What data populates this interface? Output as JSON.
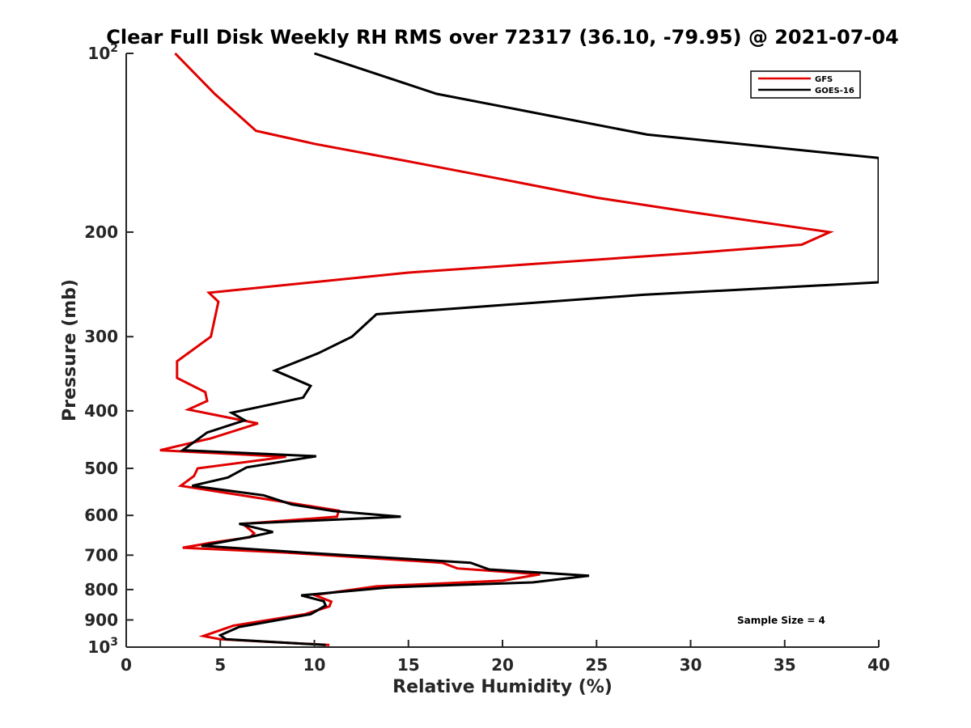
{
  "chart_data": {
    "type": "line",
    "title": "Clear Full Disk Weekly RH RMS over 72317 (36.10, -79.95) @ 2021-07-04",
    "xlabel": "Relative Humidity (%)",
    "ylabel": "Pressure (mb)",
    "xlim": [
      0,
      40
    ],
    "ylim": [
      100,
      1000
    ],
    "y_scale": "log",
    "y_reversed": true,
    "x_ticks": [
      "0",
      "5",
      "10",
      "15",
      "20",
      "25",
      "30",
      "35",
      "40"
    ],
    "y_ticks": [
      {
        "value": 100,
        "label": "10",
        "sup": "2"
      },
      {
        "value": 200,
        "label": "200",
        "sup": ""
      },
      {
        "value": 300,
        "label": "300",
        "sup": ""
      },
      {
        "value": 400,
        "label": "400",
        "sup": ""
      },
      {
        "value": 500,
        "label": "500",
        "sup": ""
      },
      {
        "value": 600,
        "label": "600",
        "sup": ""
      },
      {
        "value": 700,
        "label": "700",
        "sup": ""
      },
      {
        "value": 800,
        "label": "800",
        "sup": ""
      },
      {
        "value": 900,
        "label": "900",
        "sup": ""
      },
      {
        "value": 1000,
        "label": "10",
        "sup": "3"
      }
    ],
    "grid": false,
    "legend_position": "top-right",
    "annotation": "Sample Size = 4",
    "series": [
      {
        "name": "GFS",
        "color": "#e00000",
        "points": [
          [
            2.6,
            100
          ],
          [
            4.7,
            117
          ],
          [
            6.9,
            135
          ],
          [
            10.0,
            142
          ],
          [
            15.0,
            152
          ],
          [
            20.0,
            163
          ],
          [
            25.0,
            175
          ],
          [
            30.0,
            185
          ],
          [
            37.4,
            200
          ],
          [
            35.9,
            210
          ],
          [
            30.0,
            217
          ],
          [
            15.0,
            234
          ],
          [
            4.4,
            253
          ],
          [
            4.9,
            262
          ],
          [
            4.5,
            300
          ],
          [
            2.7,
            330
          ],
          [
            2.7,
            352
          ],
          [
            4.2,
            372
          ],
          [
            4.3,
            385
          ],
          [
            3.3,
            398
          ],
          [
            7.0,
            420
          ],
          [
            4.5,
            445
          ],
          [
            1.8,
            466
          ],
          [
            8.5,
            478
          ],
          [
            3.8,
            500
          ],
          [
            3.6,
            515
          ],
          [
            2.9,
            535
          ],
          [
            8.0,
            567
          ],
          [
            11.3,
            589
          ],
          [
            11.2,
            603
          ],
          [
            6.2,
            620
          ],
          [
            6.8,
            643
          ],
          [
            6.6,
            653
          ],
          [
            4.4,
            668
          ],
          [
            3.0,
            680
          ],
          [
            8.5,
            693
          ],
          [
            16.8,
            721
          ],
          [
            17.6,
            737
          ],
          [
            22.0,
            754
          ],
          [
            20.0,
            773
          ],
          [
            13.3,
            790
          ],
          [
            10.0,
            817
          ],
          [
            10.9,
            838
          ],
          [
            10.8,
            854
          ],
          [
            9.5,
            880
          ],
          [
            5.7,
            920
          ],
          [
            4.1,
            958
          ],
          [
            5.0,
            970
          ],
          [
            10.8,
            992
          ]
        ]
      },
      {
        "name": "GOES-16",
        "color": "#000000",
        "points": [
          [
            10.0,
            100
          ],
          [
            16.5,
            117
          ],
          [
            27.7,
            137
          ],
          [
            40.0,
            150
          ],
          [
            40.0,
            243
          ],
          [
            27.5,
            255
          ],
          [
            13.3,
            275
          ],
          [
            12.0,
            300
          ],
          [
            10.2,
            320
          ],
          [
            7.9,
            342
          ],
          [
            9.8,
            363
          ],
          [
            9.4,
            380
          ],
          [
            5.6,
            403
          ],
          [
            6.3,
            415
          ],
          [
            4.3,
            435
          ],
          [
            3.0,
            466
          ],
          [
            10.1,
            477
          ],
          [
            6.4,
            498
          ],
          [
            5.4,
            518
          ],
          [
            3.5,
            535
          ],
          [
            7.3,
            555
          ],
          [
            8.8,
            575
          ],
          [
            11.0,
            590
          ],
          [
            14.6,
            603
          ],
          [
            6.0,
            620
          ],
          [
            7.8,
            640
          ],
          [
            6.5,
            653
          ],
          [
            4.0,
            675
          ],
          [
            10.0,
            695
          ],
          [
            18.3,
            721
          ],
          [
            19.3,
            740
          ],
          [
            24.6,
            758
          ],
          [
            21.6,
            778
          ],
          [
            14.0,
            793
          ],
          [
            9.3,
            818
          ],
          [
            10.5,
            837
          ],
          [
            10.6,
            851
          ],
          [
            9.8,
            880
          ],
          [
            6.0,
            925
          ],
          [
            5.0,
            955
          ],
          [
            5.3,
            970
          ],
          [
            10.6,
            992
          ]
        ]
      }
    ]
  }
}
